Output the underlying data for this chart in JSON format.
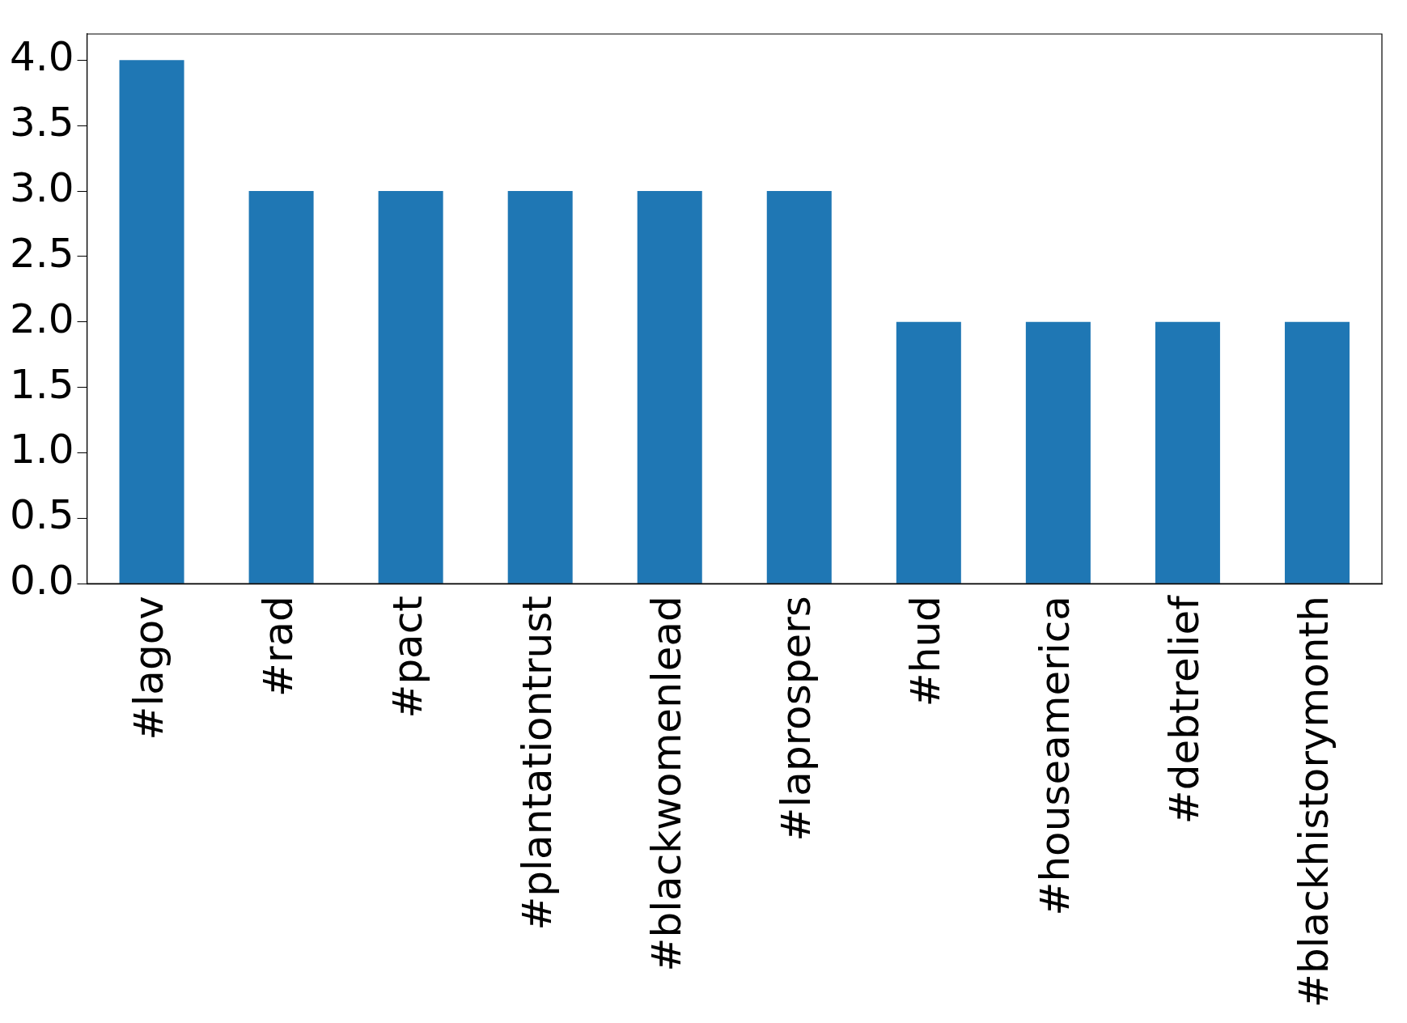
{
  "chart_data": {
    "type": "bar",
    "categories": [
      "#lagov",
      "#rad",
      "#pact",
      "#plantationtrust",
      "#blackwomenlead",
      "#laprospers",
      "#hud",
      "#houseamerica",
      "#debtrelief",
      "#blackhistorymonth"
    ],
    "values": [
      4,
      3,
      3,
      3,
      3,
      3,
      2,
      2,
      2,
      2
    ],
    "color": "#1f77b4",
    "ylim": [
      0,
      4.2
    ],
    "yticks": [
      {
        "value": 0,
        "label": "0.0"
      },
      {
        "value": 0.5,
        "label": "0.5"
      },
      {
        "value": 1,
        "label": "1.0"
      },
      {
        "value": 1.5,
        "label": "1.5"
      },
      {
        "value": 2,
        "label": "2.0"
      },
      {
        "value": 2.5,
        "label": "2.5"
      },
      {
        "value": 3,
        "label": "3.0"
      },
      {
        "value": 3.5,
        "label": "3.5"
      },
      {
        "value": 4,
        "label": "4.0"
      }
    ],
    "grid": false,
    "legend": false
  }
}
